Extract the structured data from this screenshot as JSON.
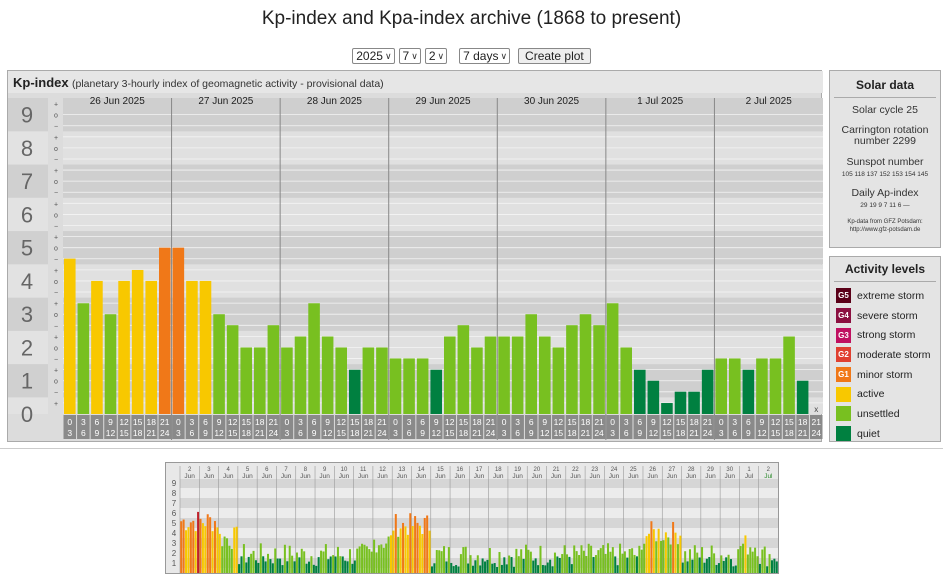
{
  "page": {
    "title": "Kp-index and Kpa-index archive (1868 to present)"
  },
  "controls": {
    "year": "2025",
    "month": "7",
    "day": "2",
    "range": "7 days",
    "create_plot": "Create plot"
  },
  "chart_header": {
    "label": "Kp-index",
    "subtitle": "(planetary 3-hourly index of geomagnetic activity - provisional data)"
  },
  "solar": {
    "title": "Solar data",
    "cycle": "Solar cycle 25",
    "carrington": "Carrington rotation number 2299",
    "sunspot_label": "Sunspot number",
    "sunspot_values": "105 118 137 152 153 154 145",
    "ap_label": "Daily Ap-index",
    "ap_values": "29 19 9 7 11 6 —",
    "source": "Kp-data from GFZ Potsdam: http://www.gfz-potsdam.de"
  },
  "activity": {
    "title": "Activity levels",
    "items": [
      {
        "badge": "G5",
        "label": "extreme storm",
        "color": "#5a0018"
      },
      {
        "badge": "G4",
        "label": "severe storm",
        "color": "#8b1040"
      },
      {
        "badge": "G3",
        "label": "strong storm",
        "color": "#c01060"
      },
      {
        "badge": "G2",
        "label": "moderate storm",
        "color": "#e04030"
      },
      {
        "badge": "G1",
        "label": "minor storm",
        "color": "#f07818"
      },
      {
        "badge": "",
        "label": "active",
        "color": "#f8c800"
      },
      {
        "badge": "",
        "label": "unsettled",
        "color": "#78c020"
      },
      {
        "badge": "",
        "label": "quiet",
        "color": "#008040"
      }
    ]
  },
  "chart_data": {
    "type": "bar",
    "title": "Kp-index",
    "ylim": [
      0,
      9
    ],
    "y_ticks": [
      "0",
      "1",
      "2",
      "3",
      "4",
      "5",
      "6",
      "7",
      "8",
      "9"
    ],
    "minor_marks": [
      "+",
      "o",
      "−"
    ],
    "days": [
      "26 Jun 2025",
      "27 Jun 2025",
      "28 Jun 2025",
      "29 Jun 2025",
      "30 Jun 2025",
      "1 Jul 2025",
      "2 Jul 2025"
    ],
    "hour_labels": [
      [
        "0",
        "3"
      ],
      [
        "3",
        "6"
      ],
      [
        "6",
        "9"
      ],
      [
        "9",
        "12"
      ],
      [
        "12",
        "15"
      ],
      [
        "15",
        "18"
      ],
      [
        "18",
        "21"
      ],
      [
        "21",
        "24"
      ]
    ],
    "values": [
      4.67,
      3.33,
      4.0,
      3.0,
      4.0,
      4.33,
      4.0,
      5.0,
      5.0,
      4.0,
      4.0,
      3.0,
      2.67,
      2.0,
      2.0,
      2.67,
      2.0,
      2.33,
      3.33,
      2.33,
      2.0,
      1.33,
      2.0,
      2.0,
      1.67,
      1.67,
      1.67,
      1.33,
      2.33,
      2.67,
      2.0,
      2.33,
      2.33,
      2.33,
      3.0,
      2.33,
      2.0,
      2.67,
      3.0,
      2.67,
      3.33,
      2.0,
      1.33,
      1.0,
      0.33,
      0.67,
      0.67,
      1.33,
      1.67,
      1.67,
      1.33,
      1.67,
      1.67,
      2.33,
      1.0,
      null
    ],
    "missing_label": "x",
    "thumbnail_labels": [
      "2",
      "3",
      "4",
      "5",
      "6",
      "7",
      "8",
      "9",
      "10",
      "11",
      "12",
      "13",
      "14",
      "15",
      "16",
      "17",
      "18",
      "19",
      "20",
      "21",
      "22",
      "23",
      "24",
      "25",
      "26",
      "27",
      "28",
      "29",
      "30",
      "1",
      "2"
    ],
    "thumbnail_month_labels": [
      "Jun",
      "Jul"
    ],
    "thumbnail_y_ticks": [
      "1",
      "2",
      "3",
      "4",
      "5",
      "6",
      "7",
      "8",
      "9"
    ]
  }
}
